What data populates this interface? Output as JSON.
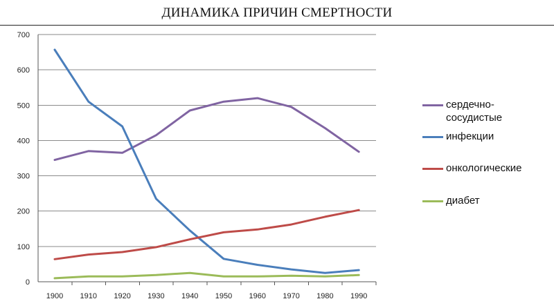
{
  "chart_data": {
    "type": "line",
    "title": "ДИНАМИКА ПРИЧИН СМЕРТНОСТИ",
    "xlabel": "",
    "ylabel": "",
    "x": [
      1900,
      1910,
      1920,
      1930,
      1940,
      1950,
      1960,
      1970,
      1980,
      1990
    ],
    "ylim": [
      0,
      700
    ],
    "yticks": [
      0,
      100,
      200,
      300,
      400,
      500,
      600,
      700
    ],
    "grid": true,
    "legend_position": "right",
    "series": [
      {
        "name": "сердечно-\nсосудистые",
        "color": "#8064a2",
        "values": [
          345,
          370,
          365,
          415,
          485,
          510,
          520,
          495,
          435,
          368
        ]
      },
      {
        "name": "инфекции",
        "color": "#4a7ebb",
        "values": [
          657,
          510,
          440,
          235,
          145,
          65,
          48,
          35,
          25,
          33
        ]
      },
      {
        "name": "онкологические",
        "color": "#be4b48",
        "values": [
          64,
          77,
          84,
          98,
          120,
          140,
          148,
          162,
          184,
          203
        ]
      },
      {
        "name": "диабет",
        "color": "#9bbb59",
        "values": [
          10,
          15,
          15,
          19,
          25,
          15,
          15,
          17,
          15,
          19
        ]
      }
    ]
  }
}
